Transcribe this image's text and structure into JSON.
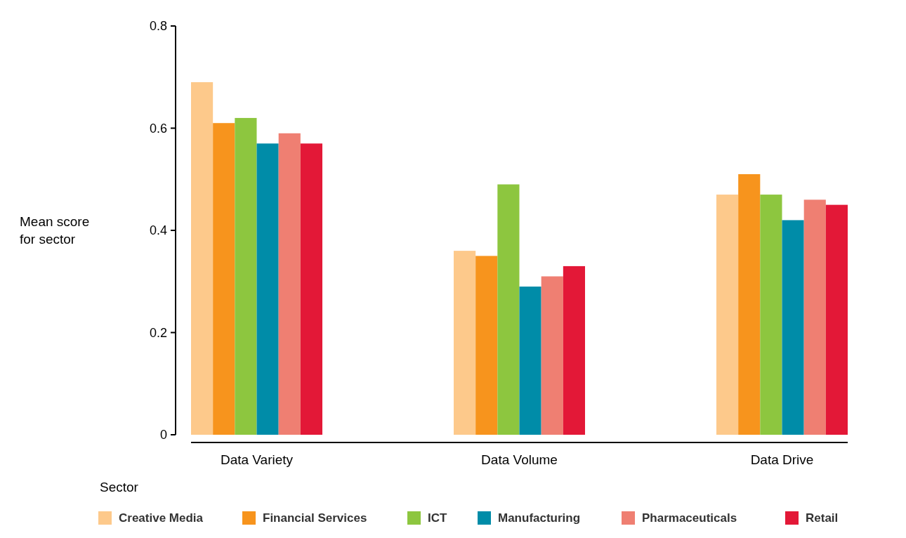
{
  "chart_data": {
    "type": "bar",
    "ylabel": "Mean score for sector",
    "legend_title": "Sector",
    "categories": [
      "Data Variety",
      "Data Volume",
      "Data Drive"
    ],
    "series": [
      {
        "name": "Creative Media",
        "color": "#fdc98b",
        "values": [
          0.69,
          0.36,
          0.47
        ]
      },
      {
        "name": "Financial Services",
        "color": "#f7941d",
        "values": [
          0.61,
          0.35,
          0.51
        ]
      },
      {
        "name": "ICT",
        "color": "#8dc63f",
        "values": [
          0.62,
          0.49,
          0.47
        ]
      },
      {
        "name": "Manufacturing",
        "color": "#008ca8",
        "values": [
          0.57,
          0.29,
          0.42
        ]
      },
      {
        "name": "Pharmaceuticals",
        "color": "#ef7f72",
        "values": [
          0.59,
          0.31,
          0.46
        ]
      },
      {
        "name": "Retail",
        "color": "#e31837",
        "values": [
          0.57,
          0.33,
          0.45
        ]
      }
    ],
    "ylim": [
      0,
      0.8
    ],
    "yticks": [
      {
        "value": 0,
        "label": "0"
      },
      0.2,
      0.4,
      0.6,
      0.8
    ],
    "legend": "bottom"
  }
}
